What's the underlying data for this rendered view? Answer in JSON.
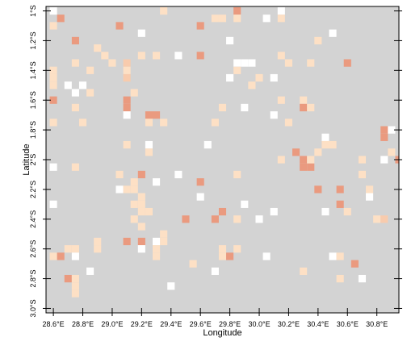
{
  "chart_data": {
    "type": "heatmap",
    "title": "",
    "xlabel": "Longitude",
    "ylabel": "Latitude",
    "xlim": [
      28.55,
      30.95
    ],
    "ylim": [
      -3.03,
      -0.97
    ],
    "x_ticks": [
      28.6,
      28.8,
      29.0,
      29.2,
      29.4,
      29.6,
      29.8,
      30.0,
      30.2,
      30.4,
      30.6,
      30.8
    ],
    "x_tick_labels": [
      "28.6°E",
      "28.8°E",
      "29.0°E",
      "29.2°E",
      "29.4°E",
      "29.6°E",
      "29.8°E",
      "30.0°E",
      "30.2°E",
      "30.4°E",
      "30.6°E",
      "30.8°E"
    ],
    "y_ticks": [
      -1.0,
      -1.2,
      -1.4,
      -1.6,
      -1.8,
      -2.0,
      -2.2,
      -2.4,
      -2.6,
      -2.8,
      -3.0
    ],
    "y_tick_labels": [
      "1°S",
      "1.2°S",
      "1.4°S",
      "1.6°S",
      "1.8°S",
      "2°S",
      "2.2°S",
      "2.4°S",
      "2.6°S",
      "2.8°S",
      "3.0°S"
    ],
    "cell_size_deg": 0.05,
    "background_value": "grey",
    "grid": false,
    "legend": "none",
    "colors": {
      "background": "#d3d3d3",
      "white": "#ffffff",
      "light": "#fde0c5",
      "medium": "#f8cbad",
      "strong": "#ea9a7f"
    },
    "cells": [
      {
        "lon": 28.6,
        "lat": -1.0,
        "c": "white"
      },
      {
        "lon": 28.65,
        "lat": -1.05,
        "c": "strong"
      },
      {
        "lon": 28.6,
        "lat": -1.1,
        "c": "light"
      },
      {
        "lon": 29.05,
        "lat": -1.1,
        "c": "strong"
      },
      {
        "lon": 29.35,
        "lat": -1.0,
        "c": "light"
      },
      {
        "lon": 29.7,
        "lat": -1.05,
        "c": "light"
      },
      {
        "lon": 29.75,
        "lat": -1.05,
        "c": "light"
      },
      {
        "lon": 29.85,
        "lat": -1.0,
        "c": "strong"
      },
      {
        "lon": 29.85,
        "lat": -1.05,
        "c": "light"
      },
      {
        "lon": 30.05,
        "lat": -1.05,
        "c": "white"
      },
      {
        "lon": 30.15,
        "lat": -1.0,
        "c": "white"
      },
      {
        "lon": 30.15,
        "lat": -1.05,
        "c": "light"
      },
      {
        "lon": 29.6,
        "lat": -1.1,
        "c": "strong"
      },
      {
        "lon": 29.2,
        "lat": -1.15,
        "c": "white"
      },
      {
        "lon": 28.75,
        "lat": -1.2,
        "c": "strong"
      },
      {
        "lon": 28.9,
        "lat": -1.25,
        "c": "light"
      },
      {
        "lon": 28.95,
        "lat": -1.3,
        "c": "light"
      },
      {
        "lon": 29.0,
        "lat": -1.35,
        "c": "light"
      },
      {
        "lon": 29.1,
        "lat": -1.35,
        "c": "medium"
      },
      {
        "lon": 29.2,
        "lat": -1.3,
        "c": "light"
      },
      {
        "lon": 29.3,
        "lat": -1.3,
        "c": "light"
      },
      {
        "lon": 29.45,
        "lat": -1.3,
        "c": "white"
      },
      {
        "lon": 29.6,
        "lat": -1.3,
        "c": "strong"
      },
      {
        "lon": 29.8,
        "lat": -1.2,
        "c": "white"
      },
      {
        "lon": 30.4,
        "lat": -1.2,
        "c": "light"
      },
      {
        "lon": 30.5,
        "lat": -1.15,
        "c": "white"
      },
      {
        "lon": 30.6,
        "lat": -1.35,
        "c": "strong"
      },
      {
        "lon": 28.6,
        "lat": -1.4,
        "c": "light"
      },
      {
        "lon": 28.75,
        "lat": -1.35,
        "c": "light"
      },
      {
        "lon": 28.85,
        "lat": -1.4,
        "c": "light"
      },
      {
        "lon": 29.1,
        "lat": -1.4,
        "c": "light"
      },
      {
        "lon": 29.1,
        "lat": -1.45,
        "c": "medium"
      },
      {
        "lon": 29.85,
        "lat": -1.35,
        "c": "white"
      },
      {
        "lon": 29.9,
        "lat": -1.35,
        "c": "white"
      },
      {
        "lon": 29.95,
        "lat": -1.35,
        "c": "white"
      },
      {
        "lon": 29.85,
        "lat": -1.4,
        "c": "light"
      },
      {
        "lon": 29.8,
        "lat": -1.45,
        "c": "white"
      },
      {
        "lon": 29.95,
        "lat": -1.5,
        "c": "light"
      },
      {
        "lon": 30.0,
        "lat": -1.45,
        "c": "light"
      },
      {
        "lon": 30.1,
        "lat": -1.45,
        "c": "white"
      },
      {
        "lon": 30.15,
        "lat": -1.3,
        "c": "light"
      },
      {
        "lon": 30.2,
        "lat": -1.35,
        "c": "light"
      },
      {
        "lon": 30.35,
        "lat": -1.35,
        "c": "light"
      },
      {
        "lon": 28.6,
        "lat": -1.45,
        "c": "light"
      },
      {
        "lon": 28.6,
        "lat": -1.5,
        "c": "light"
      },
      {
        "lon": 28.7,
        "lat": -1.5,
        "c": "white"
      },
      {
        "lon": 28.75,
        "lat": -1.55,
        "c": "white"
      },
      {
        "lon": 28.8,
        "lat": -1.5,
        "c": "white"
      },
      {
        "lon": 28.85,
        "lat": -1.55,
        "c": "light"
      },
      {
        "lon": 29.15,
        "lat": -1.55,
        "c": "light"
      },
      {
        "lon": 28.6,
        "lat": -1.6,
        "c": "strong"
      },
      {
        "lon": 28.75,
        "lat": -1.65,
        "c": "light"
      },
      {
        "lon": 29.1,
        "lat": -1.6,
        "c": "strong"
      },
      {
        "lon": 29.1,
        "lat": -1.65,
        "c": "strong"
      },
      {
        "lon": 29.75,
        "lat": -1.65,
        "c": "light"
      },
      {
        "lon": 29.9,
        "lat": -1.65,
        "c": "white"
      },
      {
        "lon": 30.15,
        "lat": -1.6,
        "c": "light"
      },
      {
        "lon": 30.3,
        "lat": -1.6,
        "c": "light"
      },
      {
        "lon": 30.3,
        "lat": -1.65,
        "c": "strong"
      },
      {
        "lon": 30.35,
        "lat": -1.65,
        "c": "light"
      },
      {
        "lon": 28.6,
        "lat": -1.75,
        "c": "light"
      },
      {
        "lon": 28.8,
        "lat": -1.75,
        "c": "light"
      },
      {
        "lon": 29.1,
        "lat": -1.7,
        "c": "white"
      },
      {
        "lon": 29.25,
        "lat": -1.7,
        "c": "strong"
      },
      {
        "lon": 29.3,
        "lat": -1.7,
        "c": "strong"
      },
      {
        "lon": 29.25,
        "lat": -1.75,
        "c": "light"
      },
      {
        "lon": 29.35,
        "lat": -1.75,
        "c": "light"
      },
      {
        "lon": 29.7,
        "lat": -1.75,
        "c": "light"
      },
      {
        "lon": 30.1,
        "lat": -1.7,
        "c": "white"
      },
      {
        "lon": 30.2,
        "lat": -1.75,
        "c": "light"
      },
      {
        "lon": 30.85,
        "lat": -1.8,
        "c": "strong"
      },
      {
        "lon": 30.9,
        "lat": -1.8,
        "c": "white"
      },
      {
        "lon": 30.45,
        "lat": -1.85,
        "c": "white"
      },
      {
        "lon": 30.45,
        "lat": -1.9,
        "c": "light"
      },
      {
        "lon": 30.5,
        "lat": -1.9,
        "c": "light"
      },
      {
        "lon": 30.4,
        "lat": -1.95,
        "c": "light"
      },
      {
        "lon": 30.85,
        "lat": -1.85,
        "c": "strong"
      },
      {
        "lon": 30.9,
        "lat": -1.95,
        "c": "light"
      },
      {
        "lon": 29.1,
        "lat": -1.9,
        "c": "light"
      },
      {
        "lon": 29.25,
        "lat": -1.9,
        "c": "white"
      },
      {
        "lon": 29.25,
        "lat": -1.95,
        "c": "light"
      },
      {
        "lon": 29.65,
        "lat": -1.9,
        "c": "white"
      },
      {
        "lon": 30.25,
        "lat": -1.95,
        "c": "strong"
      },
      {
        "lon": 30.15,
        "lat": -2.0,
        "c": "light"
      },
      {
        "lon": 30.3,
        "lat": -2.0,
        "c": "strong"
      },
      {
        "lon": 30.3,
        "lat": -2.05,
        "c": "strong"
      },
      {
        "lon": 30.35,
        "lat": -2.05,
        "c": "strong"
      },
      {
        "lon": 30.35,
        "lat": -2.0,
        "c": "light"
      },
      {
        "lon": 30.7,
        "lat": -2.0,
        "c": "light"
      },
      {
        "lon": 30.85,
        "lat": -2.0,
        "c": "white"
      },
      {
        "lon": 30.95,
        "lat": -2.0,
        "c": "strong"
      },
      {
        "lon": 30.7,
        "lat": -2.1,
        "c": "light"
      },
      {
        "lon": 28.6,
        "lat": -2.05,
        "c": "white"
      },
      {
        "lon": 28.75,
        "lat": -2.05,
        "c": "light"
      },
      {
        "lon": 29.05,
        "lat": -2.1,
        "c": "light"
      },
      {
        "lon": 29.2,
        "lat": -2.1,
        "c": "strong"
      },
      {
        "lon": 29.45,
        "lat": -2.1,
        "c": "white"
      },
      {
        "lon": 29.6,
        "lat": -2.15,
        "c": "strong"
      },
      {
        "lon": 29.85,
        "lat": -2.1,
        "c": "light"
      },
      {
        "lon": 29.15,
        "lat": -2.15,
        "c": "light"
      },
      {
        "lon": 29.3,
        "lat": -2.15,
        "c": "white"
      },
      {
        "lon": 29.05,
        "lat": -2.2,
        "c": "white"
      },
      {
        "lon": 29.1,
        "lat": -2.2,
        "c": "light"
      },
      {
        "lon": 29.15,
        "lat": -2.2,
        "c": "light"
      },
      {
        "lon": 29.2,
        "lat": -2.25,
        "c": "light"
      },
      {
        "lon": 29.6,
        "lat": -2.25,
        "c": "white"
      },
      {
        "lon": 30.4,
        "lat": -2.2,
        "c": "strong"
      },
      {
        "lon": 30.55,
        "lat": -2.2,
        "c": "strong"
      },
      {
        "lon": 30.75,
        "lat": -2.2,
        "c": "light"
      },
      {
        "lon": 30.55,
        "lat": -2.3,
        "c": "strong"
      },
      {
        "lon": 30.6,
        "lat": -2.35,
        "c": "light"
      },
      {
        "lon": 30.75,
        "lat": -2.25,
        "c": "white"
      },
      {
        "lon": 28.6,
        "lat": -2.3,
        "c": "white"
      },
      {
        "lon": 29.15,
        "lat": -2.3,
        "c": "light"
      },
      {
        "lon": 29.2,
        "lat": -2.3,
        "c": "light"
      },
      {
        "lon": 29.2,
        "lat": -2.35,
        "c": "light"
      },
      {
        "lon": 29.25,
        "lat": -2.35,
        "c": "light"
      },
      {
        "lon": 29.15,
        "lat": -2.4,
        "c": "light"
      },
      {
        "lon": 29.75,
        "lat": -2.35,
        "c": "strong"
      },
      {
        "lon": 29.7,
        "lat": -2.4,
        "c": "strong"
      },
      {
        "lon": 29.5,
        "lat": -2.4,
        "c": "strong"
      },
      {
        "lon": 29.85,
        "lat": -2.4,
        "c": "light"
      },
      {
        "lon": 29.9,
        "lat": -2.3,
        "c": "white"
      },
      {
        "lon": 30.0,
        "lat": -2.4,
        "c": "white"
      },
      {
        "lon": 30.1,
        "lat": -2.35,
        "c": "white"
      },
      {
        "lon": 30.45,
        "lat": -2.35,
        "c": "white"
      },
      {
        "lon": 30.8,
        "lat": -2.4,
        "c": "light"
      },
      {
        "lon": 30.85,
        "lat": -2.4,
        "c": "medium"
      },
      {
        "lon": 29.2,
        "lat": -2.45,
        "c": "light"
      },
      {
        "lon": 29.35,
        "lat": -2.5,
        "c": "light"
      },
      {
        "lon": 29.35,
        "lat": -2.55,
        "c": "light"
      },
      {
        "lon": 29.1,
        "lat": -2.55,
        "c": "strong"
      },
      {
        "lon": 29.2,
        "lat": -2.55,
        "c": "strong"
      },
      {
        "lon": 29.2,
        "lat": -2.6,
        "c": "white"
      },
      {
        "lon": 29.3,
        "lat": -2.55,
        "c": "white"
      },
      {
        "lon": 29.3,
        "lat": -2.6,
        "c": "light"
      },
      {
        "lon": 28.9,
        "lat": -2.55,
        "c": "light"
      },
      {
        "lon": 28.9,
        "lat": -2.6,
        "c": "light"
      },
      {
        "lon": 28.7,
        "lat": -2.6,
        "c": "light"
      },
      {
        "lon": 28.75,
        "lat": -2.6,
        "c": "light"
      },
      {
        "lon": 28.6,
        "lat": -2.65,
        "c": "light"
      },
      {
        "lon": 28.65,
        "lat": -2.65,
        "c": "strong"
      },
      {
        "lon": 28.75,
        "lat": -2.65,
        "c": "white"
      },
      {
        "lon": 29.3,
        "lat": -2.65,
        "c": "light"
      },
      {
        "lon": 29.75,
        "lat": -2.6,
        "c": "light"
      },
      {
        "lon": 29.75,
        "lat": -2.65,
        "c": "light"
      },
      {
        "lon": 29.8,
        "lat": -2.65,
        "c": "strong"
      },
      {
        "lon": 29.85,
        "lat": -2.6,
        "c": "light"
      },
      {
        "lon": 30.05,
        "lat": -2.65,
        "c": "white"
      },
      {
        "lon": 30.5,
        "lat": -2.65,
        "c": "white"
      },
      {
        "lon": 30.55,
        "lat": -2.65,
        "c": "light"
      },
      {
        "lon": 30.65,
        "lat": -2.7,
        "c": "strong"
      },
      {
        "lon": 29.55,
        "lat": -2.7,
        "c": "light"
      },
      {
        "lon": 28.85,
        "lat": -2.75,
        "c": "white"
      },
      {
        "lon": 29.7,
        "lat": -2.75,
        "c": "white"
      },
      {
        "lon": 30.3,
        "lat": -2.75,
        "c": "light"
      },
      {
        "lon": 28.7,
        "lat": -2.8,
        "c": "strong"
      },
      {
        "lon": 28.75,
        "lat": -2.8,
        "c": "light"
      },
      {
        "lon": 28.75,
        "lat": -2.85,
        "c": "light"
      },
      {
        "lon": 28.75,
        "lat": -2.9,
        "c": "light"
      },
      {
        "lon": 30.55,
        "lat": -2.8,
        "c": "light"
      },
      {
        "lon": 30.7,
        "lat": -2.8,
        "c": "white"
      },
      {
        "lon": 29.4,
        "lat": -2.85,
        "c": "white"
      }
    ]
  }
}
